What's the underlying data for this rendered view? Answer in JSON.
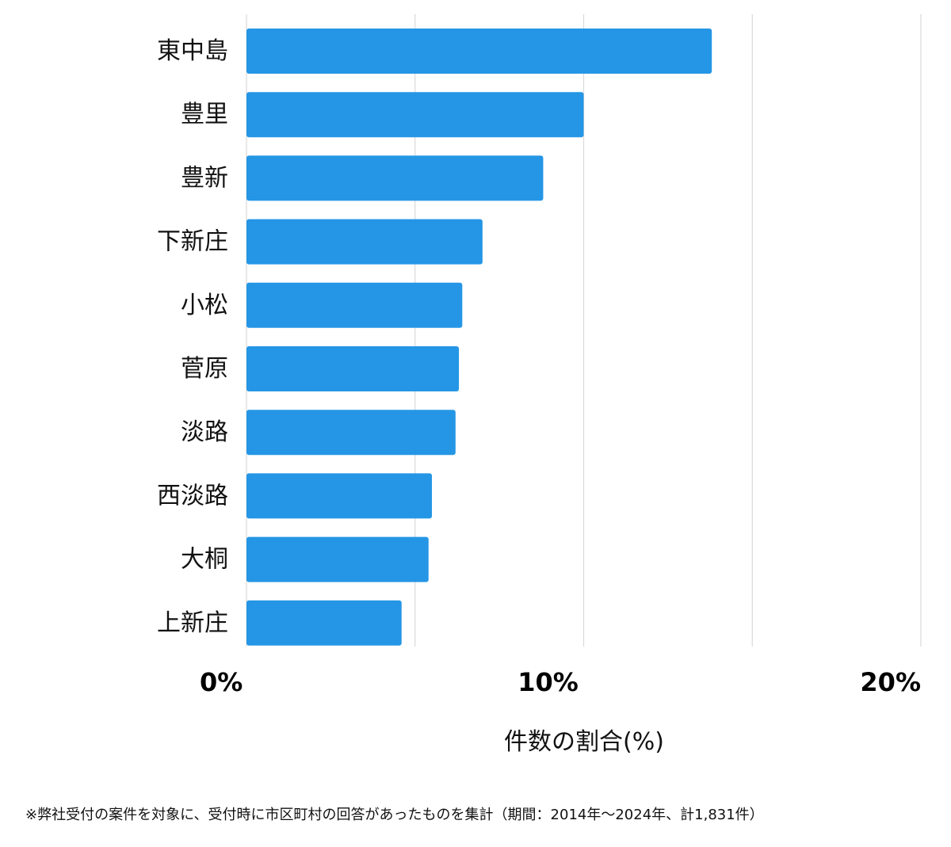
{
  "chart_data": {
    "type": "bar",
    "orientation": "horizontal",
    "categories": [
      "東中島",
      "豊里",
      "豊新",
      "下新庄",
      "小松",
      "菅原",
      "淡路",
      "西淡路",
      "大桐",
      "上新庄"
    ],
    "values": [
      13.8,
      10.0,
      8.8,
      7.0,
      6.4,
      6.3,
      6.2,
      5.5,
      5.4,
      4.6
    ],
    "xlim": [
      0,
      20
    ],
    "x_ticks": [
      "0%",
      "10%",
      "20%"
    ],
    "xlabel": "件数の割合(%)",
    "grid": true,
    "bar_color": "#2596e5"
  },
  "footnote": "※弊社受付の案件を対象に、受付時に市区町村の回答があったものを集計（期間：2014年〜2024年、計1,831件）"
}
